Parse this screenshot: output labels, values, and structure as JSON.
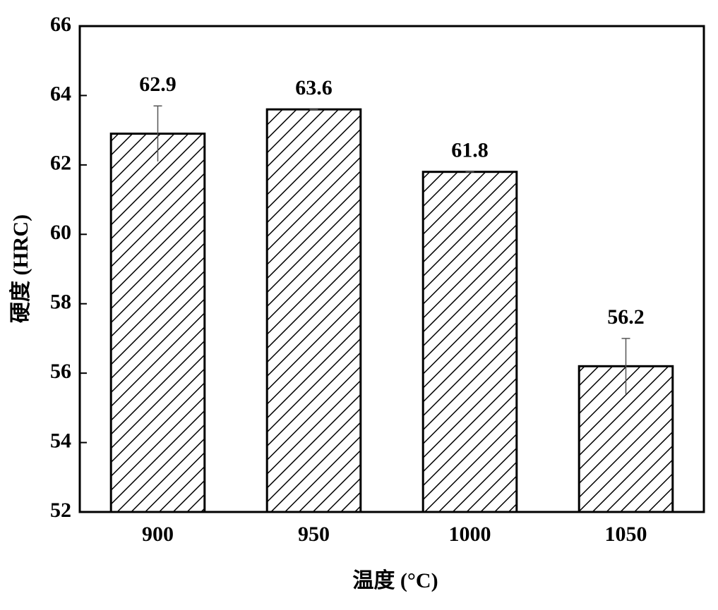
{
  "chart_data": {
    "type": "bar",
    "x_label": "温度 (°C)",
    "y_label": "硬度 (HRC)",
    "categories": [
      "900",
      "950",
      "1000",
      "1050"
    ],
    "values": [
      62.9,
      63.6,
      61.8,
      56.2
    ],
    "errors": [
      0.8,
      0,
      0,
      0.8
    ],
    "color": "#000000",
    "ylim": [
      52,
      66
    ],
    "yticks": [
      52,
      54,
      56,
      58,
      60,
      62,
      64,
      66
    ],
    "grid": false
  }
}
